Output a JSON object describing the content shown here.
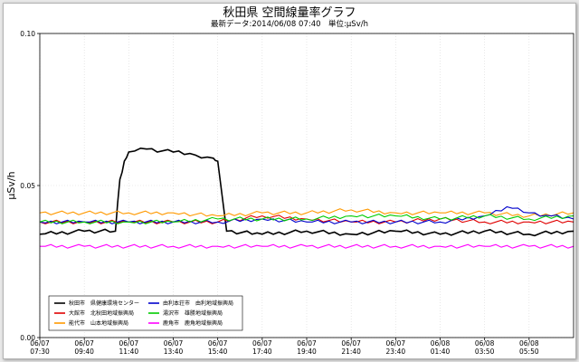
{
  "chart_data": {
    "type": "line",
    "title": "秋田県 空間線量率グラフ",
    "subtitle": "最新データ:2014/06/08 07:40　単位:μSv/h",
    "xlabel": "",
    "ylabel": "μSv/h",
    "ylim": [
      0,
      0.1
    ],
    "y_ticks": [
      "0.00",
      "0.05",
      "0.10"
    ],
    "y_tick_values": [
      0,
      0.05,
      0.1
    ],
    "x_ticks": [
      {
        "date": "06/07",
        "time": "07:30"
      },
      {
        "date": "06/07",
        "time": "09:40"
      },
      {
        "date": "06/07",
        "time": "11:40"
      },
      {
        "date": "06/07",
        "time": "13:40"
      },
      {
        "date": "06/07",
        "time": "15:40"
      },
      {
        "date": "06/07",
        "time": "17:40"
      },
      {
        "date": "06/07",
        "time": "19:40"
      },
      {
        "date": "06/07",
        "time": "21:40"
      },
      {
        "date": "06/07",
        "time": "23:40"
      },
      {
        "date": "06/08",
        "time": "01:40"
      },
      {
        "date": "06/08",
        "time": "03:50"
      },
      {
        "date": "06/08",
        "time": "05:50"
      }
    ],
    "x_tick_pos": [
      0,
      1,
      2,
      3,
      4,
      5,
      6,
      7,
      8,
      9,
      10,
      11
    ],
    "x_range": [
      0,
      12
    ],
    "grid": true,
    "legend_position": "bottom-left",
    "series": [
      {
        "name": "秋田市　県健康環境センター",
        "color": "#000000",
        "style": "solid",
        "x": [
          0,
          1,
          1.7,
          1.8,
          1.9,
          2.0,
          2.4,
          3.0,
          3.5,
          3.9,
          4.0,
          4.2,
          5,
          6,
          7,
          8,
          9,
          10,
          11,
          12
        ],
        "y": [
          0.034,
          0.035,
          0.035,
          0.052,
          0.058,
          0.061,
          0.062,
          0.061,
          0.06,
          0.059,
          0.058,
          0.035,
          0.034,
          0.035,
          0.034,
          0.035,
          0.034,
          0.035,
          0.034,
          0.035
        ]
      },
      {
        "name": "大館市　北秋田地域振興局",
        "color": "#e00000",
        "style": "solid",
        "x": [
          0,
          1,
          2,
          3,
          4,
          5,
          6,
          7,
          8,
          9,
          10,
          11,
          12
        ],
        "y": [
          0.038,
          0.038,
          0.038,
          0.038,
          0.038,
          0.04,
          0.039,
          0.038,
          0.038,
          0.039,
          0.038,
          0.038,
          0.038
        ]
      },
      {
        "name": "能代市　山本地域振興局",
        "color": "#ff9900",
        "style": "solid",
        "x": [
          0,
          1,
          2,
          3,
          4,
          5,
          6,
          7,
          8,
          9,
          10,
          11,
          12
        ],
        "y": [
          0.041,
          0.041,
          0.041,
          0.041,
          0.04,
          0.041,
          0.041,
          0.042,
          0.041,
          0.041,
          0.041,
          0.04,
          0.041
        ]
      },
      {
        "name": "由利本荘市　由利地域振興局",
        "color": "#0000cc",
        "style": "solid",
        "x": [
          0,
          1,
          2,
          3,
          4,
          5,
          6,
          7,
          8,
          9,
          10,
          10.5,
          11,
          11.5,
          12
        ],
        "y": [
          0.038,
          0.038,
          0.038,
          0.038,
          0.038,
          0.039,
          0.038,
          0.038,
          0.038,
          0.038,
          0.04,
          0.043,
          0.041,
          0.04,
          0.039
        ]
      },
      {
        "name": "湯沢市　雄勝地域振興局",
        "color": "#00cc00",
        "style": "solid",
        "x": [
          0,
          1,
          2,
          3,
          4,
          5,
          6,
          7,
          8,
          9,
          10,
          11,
          12
        ],
        "y": [
          0.038,
          0.038,
          0.038,
          0.038,
          0.039,
          0.039,
          0.039,
          0.04,
          0.04,
          0.039,
          0.04,
          0.039,
          0.04
        ]
      },
      {
        "name": "鹿角市　鹿角地域振興局",
        "color": "#ff00ff",
        "style": "solid",
        "x": [
          0,
          1,
          2,
          3,
          4,
          5,
          6,
          7,
          8,
          9,
          10,
          11,
          12
        ],
        "y": [
          0.03,
          0.03,
          0.03,
          0.03,
          0.03,
          0.03,
          0.03,
          0.03,
          0.03,
          0.03,
          0.03,
          0.03,
          0.03
        ]
      }
    ]
  }
}
